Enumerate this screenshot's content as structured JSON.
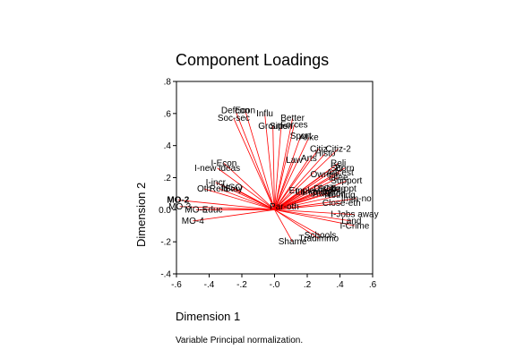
{
  "chart_data": {
    "type": "scatter",
    "title": "Component Loadings",
    "xlabel": "Dimension 1",
    "ylabel": "Dimension 2",
    "footnote": "Variable Principal normalization.",
    "xlim": [
      -0.6,
      0.6
    ],
    "ylim": [
      -0.4,
      0.8
    ],
    "xticks": [
      "-.6",
      "-.4",
      "-.2",
      "-.0",
      ".2",
      ".4",
      ".6"
    ],
    "yticks": [
      ".8",
      ".6",
      ".4",
      ".2",
      "0.0",
      "-.2",
      "-.4"
    ],
    "grid": false,
    "vectors_from_origin": true,
    "vector_color": "#ff0000",
    "points": [
      {
        "label": "Defcon",
        "x": -0.24,
        "y": 0.62
      },
      {
        "label": "Econ",
        "x": -0.18,
        "y": 0.62
      },
      {
        "label": "Influ",
        "x": -0.06,
        "y": 0.6
      },
      {
        "label": "Soc-sec",
        "x": -0.25,
        "y": 0.57
      },
      {
        "label": "Groups",
        "x": -0.01,
        "y": 0.52
      },
      {
        "label": "Sitten",
        "x": 0.04,
        "y": 0.52
      },
      {
        "label": "Better",
        "x": 0.11,
        "y": 0.57
      },
      {
        "label": "Forces",
        "x": 0.12,
        "y": 0.53
      },
      {
        "label": "Sport",
        "x": 0.16,
        "y": 0.46
      },
      {
        "label": "Alike",
        "x": 0.21,
        "y": 0.45
      },
      {
        "label": "Citiz",
        "x": 0.27,
        "y": 0.38
      },
      {
        "label": "Citiz-2",
        "x": 0.39,
        "y": 0.38
      },
      {
        "label": "Histo",
        "x": 0.31,
        "y": 0.35
      },
      {
        "label": "Arts",
        "x": 0.21,
        "y": 0.32
      },
      {
        "label": "Law",
        "x": 0.12,
        "y": 0.31
      },
      {
        "label": "Reli",
        "x": 0.39,
        "y": 0.29
      },
      {
        "label": "Sci",
        "x": 0.38,
        "y": 0.26
      },
      {
        "label": "Born",
        "x": 0.43,
        "y": 0.26
      },
      {
        "label": "Owner",
        "x": 0.3,
        "y": 0.22
      },
      {
        "label": "Ancest",
        "x": 0.4,
        "y": 0.23
      },
      {
        "label": "Lifee",
        "x": 0.39,
        "y": 0.2
      },
      {
        "label": "Support",
        "x": 0.44,
        "y": 0.18
      },
      {
        "label": "Employ",
        "x": 0.18,
        "y": 0.12
      },
      {
        "label": "Dislike",
        "x": 0.32,
        "y": 0.13
      },
      {
        "label": "Sv-flag",
        "x": 0.35,
        "y": 0.13
      },
      {
        "label": "Citiz-opt",
        "x": 0.4,
        "y": 0.13
      },
      {
        "label": "Language",
        "x": 0.25,
        "y": 0.11
      },
      {
        "label": "Tradition",
        "x": 0.33,
        "y": 0.1
      },
      {
        "label": "Nothing",
        "x": 0.4,
        "y": 0.09
      },
      {
        "label": "Imm-no",
        "x": 0.5,
        "y": 0.07
      },
      {
        "label": "Close-eth",
        "x": 0.41,
        "y": 0.04
      },
      {
        "label": "Par-oth",
        "x": 0.06,
        "y": 0.02
      },
      {
        "label": "I-Jobs away",
        "x": 0.49,
        "y": -0.03
      },
      {
        "label": "Land",
        "x": 0.47,
        "y": -0.07
      },
      {
        "label": "I-Crime",
        "x": 0.49,
        "y": -0.1
      },
      {
        "label": "Schools",
        "x": 0.28,
        "y": -0.16
      },
      {
        "label": "Tradimmo",
        "x": 0.27,
        "y": -0.18
      },
      {
        "label": "Shame",
        "x": 0.11,
        "y": -0.2
      },
      {
        "label": "I-Econ",
        "x": -0.31,
        "y": 0.29
      },
      {
        "label": "I-new ideas",
        "x": -0.35,
        "y": 0.26
      },
      {
        "label": "I-incr",
        "x": -0.36,
        "y": 0.17
      },
      {
        "label": "Oth",
        "x": -0.43,
        "y": 0.13
      },
      {
        "label": "Refu",
        "x": -0.34,
        "y": 0.13
      },
      {
        "label": "Stay",
        "x": -0.25,
        "y": 0.13
      },
      {
        "label": "NGO",
        "x": -0.26,
        "y": 0.14
      },
      {
        "label": "MO-2",
        "x": -0.59,
        "y": 0.06
      },
      {
        "label": "MO-3",
        "x": -0.58,
        "y": 0.02
      },
      {
        "label": "MO-5",
        "x": -0.48,
        "y": 0.0
      },
      {
        "label": "Educ",
        "x": -0.38,
        "y": 0.0
      },
      {
        "label": "MO-4",
        "x": -0.5,
        "y": -0.07
      }
    ]
  }
}
